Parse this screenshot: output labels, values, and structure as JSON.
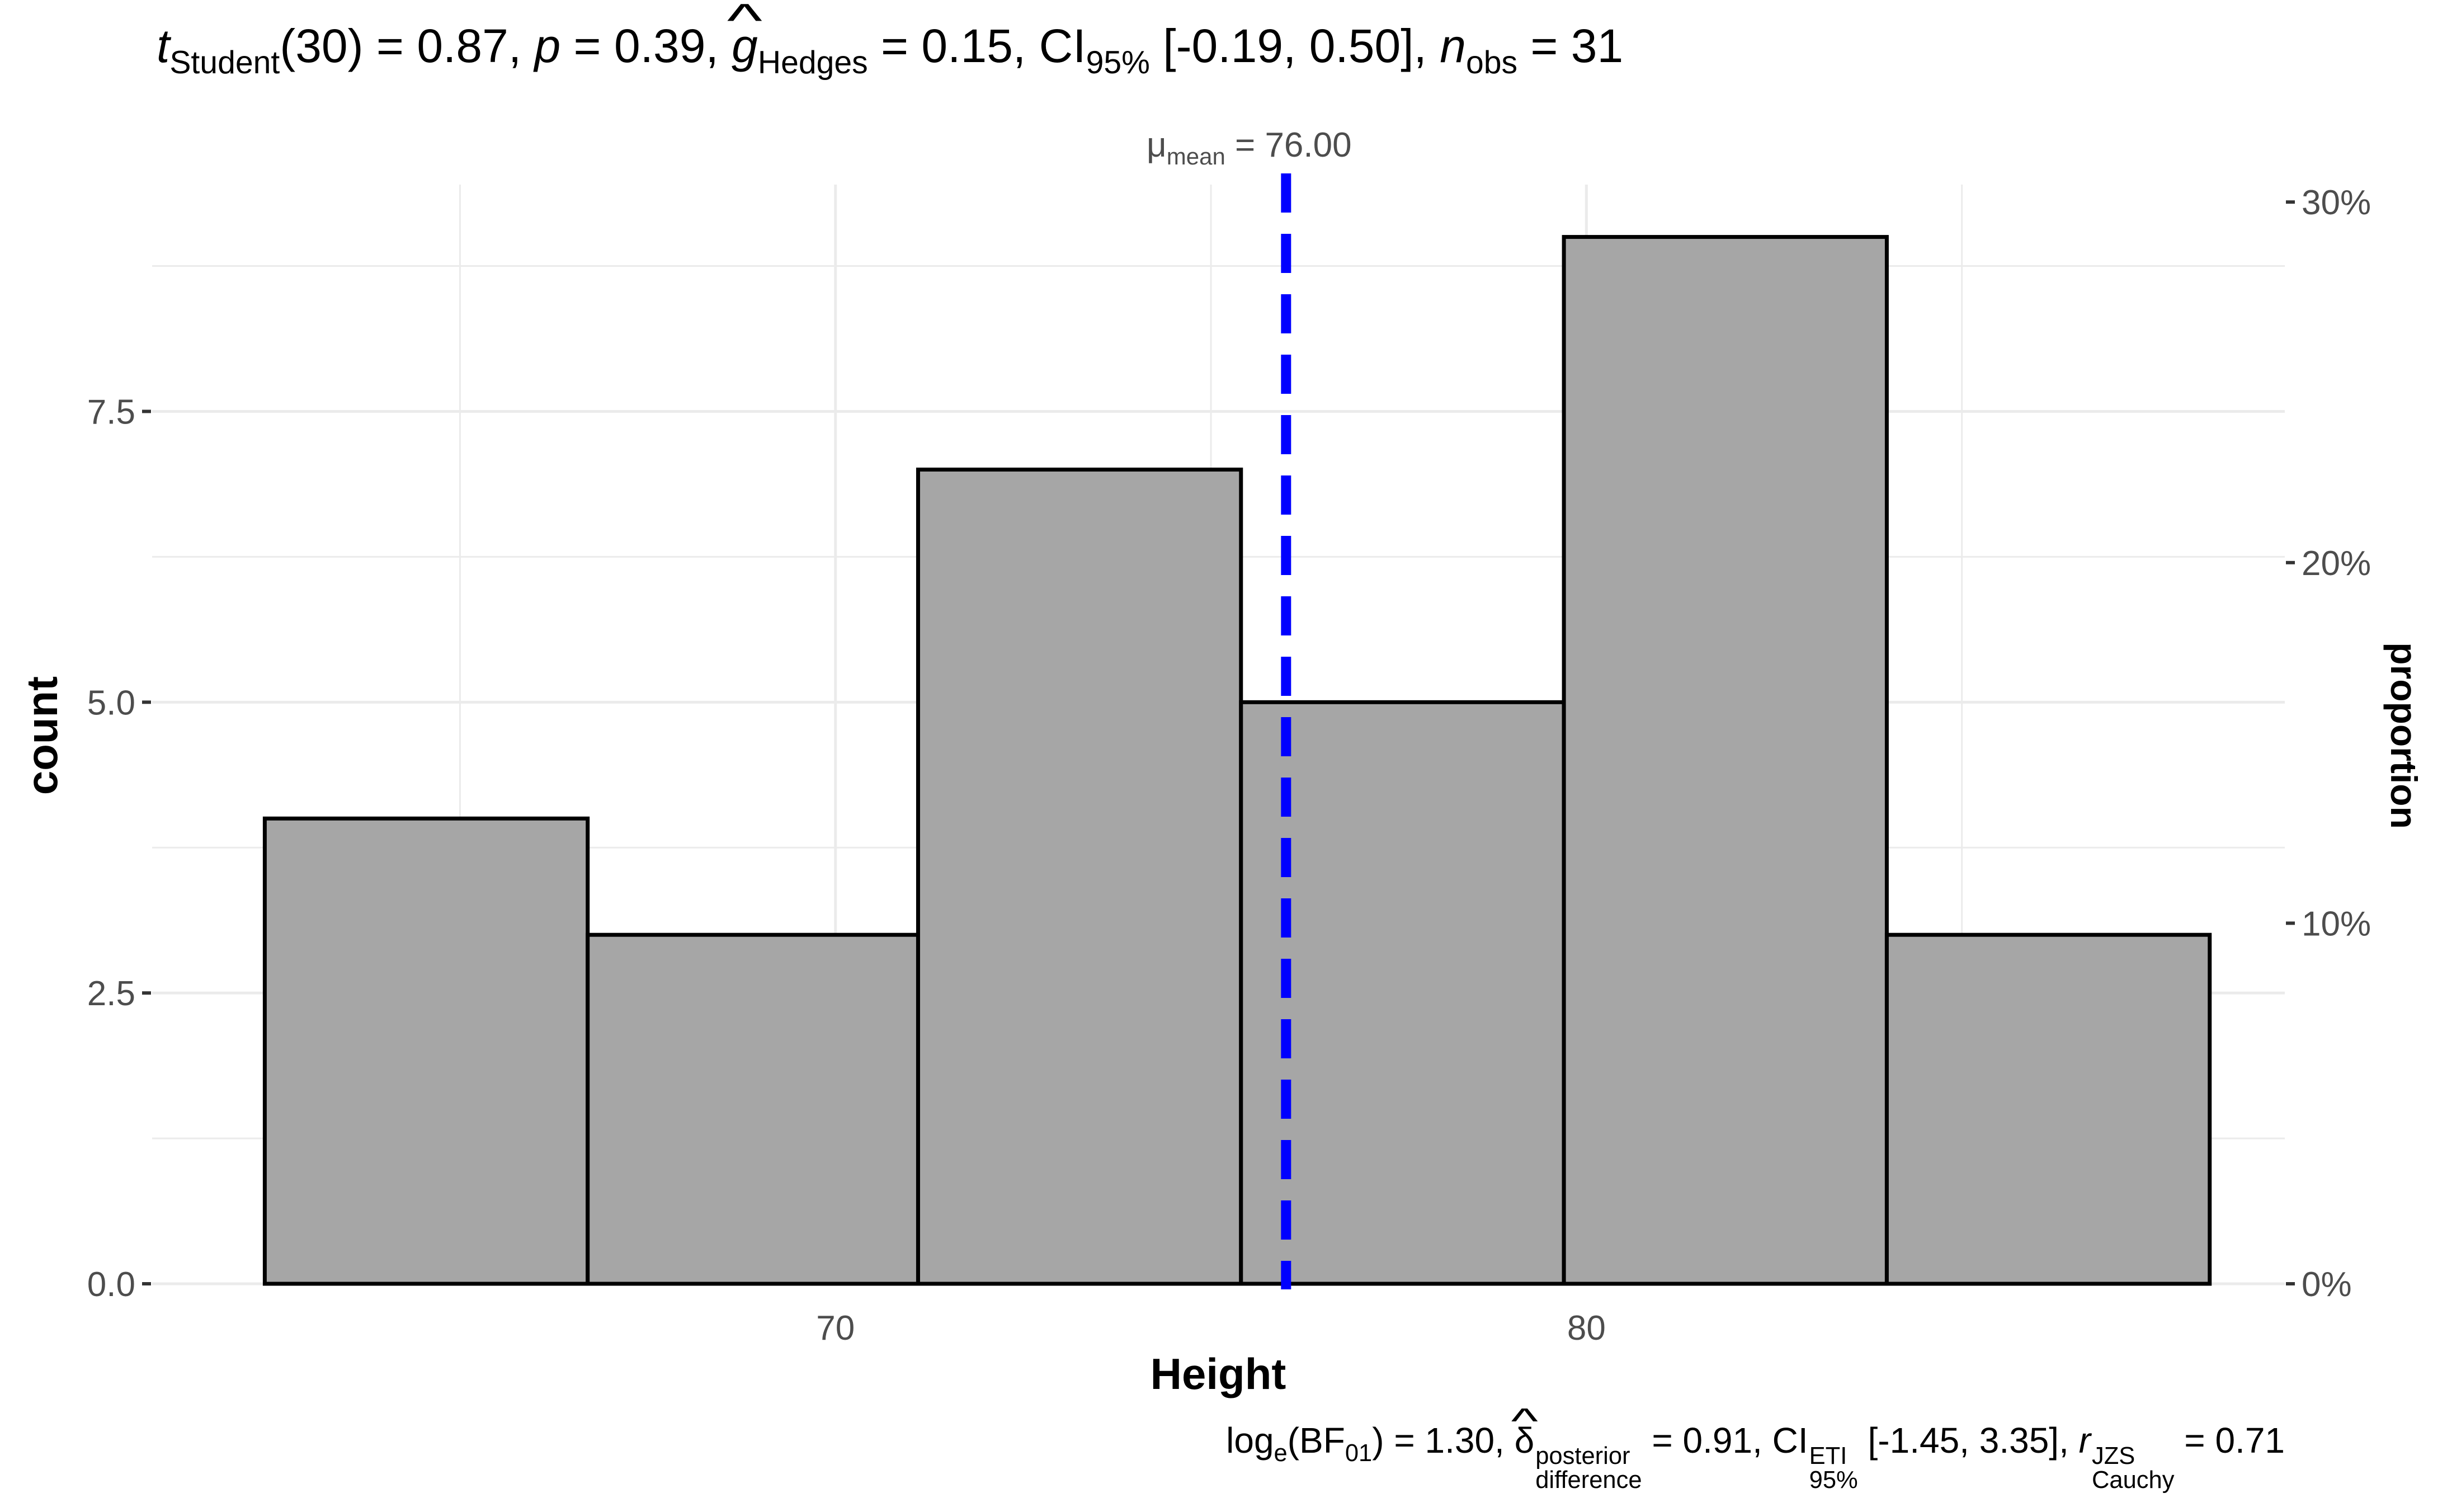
{
  "subtitle": {
    "t_symbol": "t",
    "t_sub": "Student",
    "t_stat": "(30) = 0.87, ",
    "p_symbol": "p",
    "p_val": " = 0.39, ",
    "g_symbol": "g",
    "g_sub": "Hedges",
    "g_val": " = 0.15, CI",
    "ci_sub": "95%",
    "ci_val": " [-0.19, 0.50], ",
    "n_symbol": "n",
    "n_sub": "obs",
    "n_val": " = 31"
  },
  "caption": {
    "log_text": "log",
    "log_sub": "e",
    "bf_open": "(BF",
    "bf_sub": "01",
    "bf_val": ") = 1.30, ",
    "delta_symbol": "δ",
    "delta_sup": "posterior",
    "delta_sub": "difference",
    "delta_val": " = 0.91, CI",
    "ci_sup": "ETI",
    "ci_sub": "95%",
    "ci_val": " [-1.45, 3.35], ",
    "r_symbol": "r",
    "r_sup": "JZS",
    "r_sub": "Cauchy",
    "r_val": " = 0.71"
  },
  "mean_annotation": {
    "symbol": "μ",
    "sub": "mean",
    "text": " = 76.00"
  },
  "chart_data": {
    "type": "bar",
    "subtype": "histogram",
    "xlabel": "Height",
    "ylabel": "count",
    "y2label": "proportion",
    "bins": [
      {
        "x0": 62.4,
        "x1": 66.7,
        "count": 4
      },
      {
        "x0": 66.7,
        "x1": 71.1,
        "count": 3
      },
      {
        "x0": 71.1,
        "x1": 75.4,
        "count": 7
      },
      {
        "x0": 75.4,
        "x1": 79.7,
        "count": 5
      },
      {
        "x0": 79.7,
        "x1": 84.0,
        "count": 9
      },
      {
        "x0": 84.0,
        "x1": 88.3,
        "count": 3
      }
    ],
    "n_total": 31,
    "mean_line": 76.0,
    "xlim": [
      60.9,
      89.3
    ],
    "ylim": [
      0,
      9.45
    ],
    "x_ticks": [
      70,
      80
    ],
    "x_minor_ticks": [
      65,
      75,
      85
    ],
    "y_ticks": [
      0.0,
      2.5,
      5.0,
      7.5
    ],
    "y_tick_labels": [
      "0.0",
      "2.5",
      "5.0",
      "7.5"
    ],
    "y2_ticks": [
      0,
      0.1,
      0.2,
      0.3
    ],
    "y2_tick_labels": [
      "0%",
      "10%",
      "20%",
      "30%"
    ],
    "grid": true,
    "colors": {
      "bar_fill": "#a6a6a6",
      "bar_stroke": "#000000",
      "mean_line": "#0000ff",
      "grid": "#ebebeb"
    }
  }
}
